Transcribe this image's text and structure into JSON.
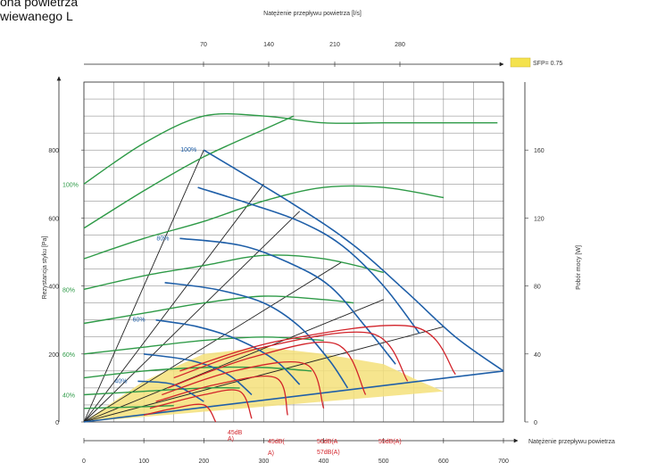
{
  "header": {
    "line1": "ona powietrza",
    "line2": "wiewanego L"
  },
  "chart_data": {
    "type": "line",
    "top_axis_title": "Natężenie przepływu powietrza [l/s]",
    "top_ticks": [
      70,
      140,
      210,
      280
    ],
    "top_range": [
      0,
      280
    ],
    "bottom_axis_title": "Natężenie przepływu powietrza",
    "bottom_ticks": [
      0,
      100,
      200,
      300,
      400,
      500,
      600,
      700
    ],
    "x_range": [
      0,
      700
    ],
    "left_axis_title": "Rezystancja styku [Pa]",
    "left_ticks": [
      0,
      200,
      400,
      600,
      800
    ],
    "y_range": [
      0,
      1000
    ],
    "right_axis_title": "Pobór mocy [W]",
    "right_ticks": [
      0,
      40,
      80,
      120,
      160
    ],
    "right_range": [
      0,
      200
    ],
    "grid": true,
    "legend": {
      "label": "SFP= 0.75",
      "color": "#f4e24d",
      "placement": "top-right"
    },
    "colors": {
      "pressure": "#1f5fa8",
      "power": "#2e9a47",
      "sound": "#d2232a",
      "system": "#222222",
      "sfp_fill": "#f4e07a",
      "pct_left": "#2e9a47",
      "pct_inner": "#1f5fa8"
    },
    "pressure_curves": [
      {
        "pct": "100%",
        "x": [
          200,
          350,
          450,
          540,
          620,
          700
        ],
        "y": [
          800,
          640,
          520,
          380,
          250,
          150
        ]
      },
      {
        "pct": "",
        "x": [
          190,
          280,
          360,
          430,
          500,
          560
        ],
        "y": [
          690,
          640,
          590,
          520,
          400,
          260
        ]
      },
      {
        "pct": "80%",
        "x": [
          160,
          260,
          340,
          410,
          470,
          520
        ],
        "y": [
          540,
          520,
          470,
          400,
          280,
          170
        ]
      },
      {
        "pct": "",
        "x": [
          135,
          220,
          300,
          360,
          410,
          440
        ],
        "y": [
          410,
          390,
          350,
          280,
          180,
          100
        ]
      },
      {
        "pct": "60%",
        "x": [
          120,
          190,
          260,
          320,
          360
        ],
        "y": [
          300,
          280,
          240,
          180,
          110
        ]
      },
      {
        "pct": "",
        "x": [
          100,
          180,
          240,
          280
        ],
        "y": [
          200,
          180,
          140,
          80
        ]
      },
      {
        "pct": "40%",
        "x": [
          90,
          150,
          200
        ],
        "y": [
          120,
          110,
          60
        ]
      }
    ],
    "power_curves": [
      {
        "pct": "100%",
        "x": [
          0,
          100,
          200,
          300,
          400,
          500,
          600,
          690
        ],
        "y": [
          700,
          820,
          900,
          900,
          880,
          880,
          880,
          880
        ]
      },
      {
        "pct": "",
        "x": [
          0,
          100,
          200,
          300,
          350
        ],
        "y": [
          570,
          680,
          780,
          860,
          900
        ]
      },
      {
        "pct": "",
        "x": [
          0,
          100,
          200,
          300,
          400,
          500,
          600
        ],
        "y": [
          480,
          540,
          590,
          650,
          690,
          690,
          660
        ]
      },
      {
        "pct": "80%",
        "x": [
          0,
          100,
          200,
          300,
          400,
          500
        ],
        "y": [
          390,
          430,
          460,
          490,
          480,
          440
        ]
      },
      {
        "pct": "",
        "x": [
          0,
          100,
          200,
          300,
          400,
          450
        ],
        "y": [
          290,
          320,
          350,
          370,
          360,
          350
        ]
      },
      {
        "pct": "60%",
        "x": [
          0,
          100,
          200,
          300,
          400
        ],
        "y": [
          200,
          220,
          240,
          250,
          240
        ]
      },
      {
        "pct": "",
        "x": [
          0,
          100,
          200,
          300,
          380
        ],
        "y": [
          130,
          150,
          160,
          160,
          150
        ]
      },
      {
        "pct": "40%",
        "x": [
          0,
          100,
          200,
          260
        ],
        "y": [
          80,
          90,
          100,
          100
        ]
      },
      {
        "pct": "",
        "x": [
          0,
          100,
          150
        ],
        "y": [
          40,
          45,
          48
        ]
      }
    ],
    "system_lines": [
      {
        "x": [
          0,
          200
        ],
        "y": [
          0,
          800
        ]
      },
      {
        "x": [
          0,
          300
        ],
        "y": [
          0,
          700
        ]
      },
      {
        "x": [
          0,
          360
        ],
        "y": [
          0,
          620
        ]
      },
      {
        "x": [
          0,
          430
        ],
        "y": [
          0,
          470
        ]
      },
      {
        "x": [
          0,
          500
        ],
        "y": [
          0,
          360
        ]
      },
      {
        "x": [
          0,
          600
        ],
        "y": [
          0,
          280
        ]
      }
    ],
    "sound_curves": [
      {
        "x": [
          100,
          150,
          200,
          220
        ],
        "y": [
          20,
          40,
          50,
          0
        ]
      },
      {
        "x": [
          110,
          200,
          260,
          280
        ],
        "y": [
          40,
          80,
          90,
          10
        ]
      },
      {
        "x": [
          120,
          220,
          320,
          340
        ],
        "y": [
          60,
          110,
          130,
          20
        ]
      },
      {
        "x": [
          130,
          250,
          370,
          400
        ],
        "y": [
          80,
          150,
          170,
          40
        ]
      },
      {
        "x": [
          140,
          280,
          420,
          470
        ],
        "y": [
          100,
          190,
          230,
          80
        ]
      },
      {
        "x": [
          150,
          300,
          480,
          540
        ],
        "y": [
          130,
          220,
          260,
          120
        ]
      },
      {
        "x": [
          160,
          330,
          550,
          620
        ],
        "y": [
          150,
          240,
          280,
          140
        ]
      }
    ],
    "sfp_region": {
      "x": [
        0,
        100,
        200,
        300,
        400,
        500,
        560,
        600
      ],
      "y": [
        0,
        120,
        200,
        220,
        200,
        170,
        120,
        90
      ]
    },
    "sound_labels": [
      "45dB(",
      "A)",
      "50dB(A",
      "57dB(A)",
      "55dB(A)"
    ],
    "sound_label_top": "45dB",
    "sound_label_top2": "A)"
  }
}
